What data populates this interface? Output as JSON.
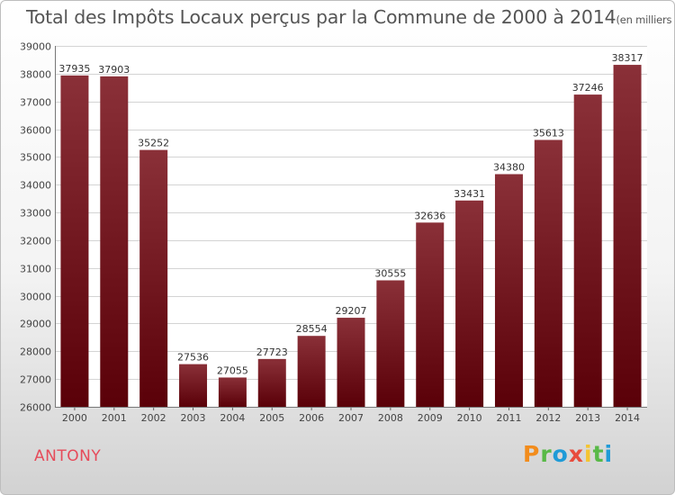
{
  "chart_data": {
    "type": "bar",
    "title": "Total des Impôts Locaux perçus par la Commune de 2000 à 2014",
    "unit_note": "(en milliers d'€)",
    "categories": [
      "2000",
      "2001",
      "2002",
      "2003",
      "2004",
      "2005",
      "2006",
      "2007",
      "2008",
      "2009",
      "2010",
      "2011",
      "2012",
      "2013",
      "2014"
    ],
    "values": [
      37935,
      37903,
      35252,
      27536,
      27055,
      27723,
      28554,
      29207,
      30555,
      32636,
      33431,
      34380,
      35613,
      37246,
      38317
    ],
    "ylim": [
      26000,
      39000
    ],
    "yticks": [
      26000,
      27000,
      28000,
      29000,
      30000,
      31000,
      32000,
      33000,
      34000,
      35000,
      36000,
      37000,
      38000,
      39000
    ],
    "xlabel": "",
    "ylabel": "",
    "grid": true,
    "bar_color_top": "#8a3038",
    "bar_color_bottom": "#5a0008"
  },
  "commune": "ANTONY",
  "logo": "Proxiti"
}
